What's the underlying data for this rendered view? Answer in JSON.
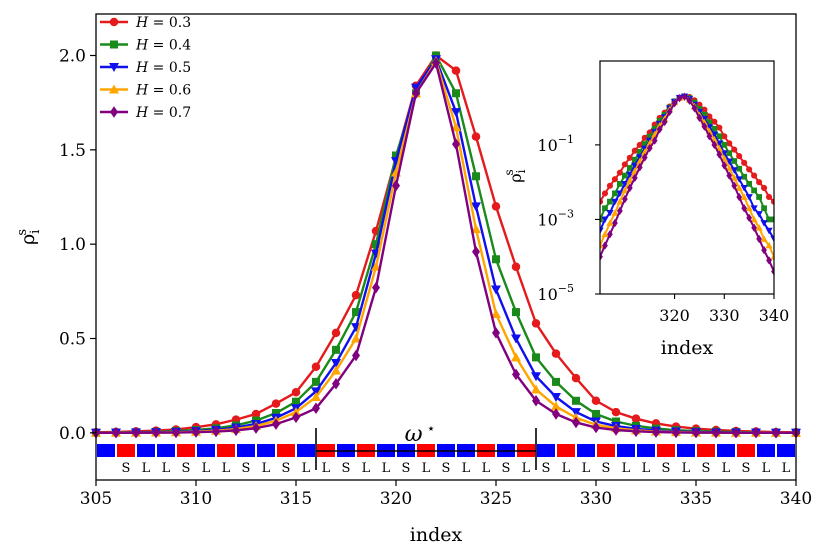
{
  "chart_data": {
    "type": "line",
    "title": "",
    "xlabel": "index",
    "ylabel_main": "ρ",
    "ylabel_sup": "s",
    "ylabel_sub": "i",
    "xlim": [
      305,
      340
    ],
    "ylim": [
      -0.25,
      2.22
    ],
    "xticks": [
      305,
      310,
      315,
      320,
      325,
      330,
      335,
      340
    ],
    "yticks": [
      0.0,
      0.5,
      1.0,
      1.5,
      2.0
    ],
    "x": [
      305,
      306,
      307,
      308,
      309,
      310,
      311,
      312,
      313,
      314,
      315,
      316,
      317,
      318,
      319,
      320,
      321,
      322,
      323,
      324,
      325,
      326,
      327,
      328,
      329,
      330,
      331,
      332,
      333,
      334,
      335,
      336,
      337,
      338,
      339,
      340
    ],
    "series": [
      {
        "name": "H = 0.3",
        "label_var": "H",
        "label_eq": " = 0.3",
        "color": "#e41a1c",
        "marker": "circle",
        "values": [
          0.003,
          0.005,
          0.008,
          0.012,
          0.018,
          0.03,
          0.045,
          0.07,
          0.1,
          0.155,
          0.215,
          0.35,
          0.53,
          0.73,
          1.07,
          1.46,
          1.84,
          2.0,
          1.92,
          1.57,
          1.2,
          0.88,
          0.58,
          0.42,
          0.29,
          0.17,
          0.11,
          0.075,
          0.05,
          0.033,
          0.022,
          0.015,
          0.01,
          0.007,
          0.004,
          0.003
        ]
      },
      {
        "name": "H = 0.4",
        "label_var": "H",
        "label_eq": " = 0.4",
        "color": "#1a8a1a",
        "marker": "square",
        "values": [
          0.001,
          0.002,
          0.003,
          0.005,
          0.009,
          0.015,
          0.024,
          0.04,
          0.065,
          0.105,
          0.165,
          0.27,
          0.44,
          0.64,
          1.0,
          1.47,
          1.8,
          2.0,
          1.8,
          1.36,
          0.92,
          0.64,
          0.4,
          0.27,
          0.17,
          0.1,
          0.06,
          0.037,
          0.023,
          0.014,
          0.009,
          0.006,
          0.004,
          0.002,
          0.001,
          0.001
        ]
      },
      {
        "name": "H = 0.5",
        "label_var": "H",
        "label_eq": " = 0.5",
        "color": "#1010ee",
        "marker": "triangle-down",
        "values": [
          0.0005,
          0.001,
          0.0015,
          0.003,
          0.005,
          0.009,
          0.016,
          0.028,
          0.047,
          0.08,
          0.13,
          0.22,
          0.37,
          0.56,
          0.95,
          1.44,
          1.83,
          1.98,
          1.7,
          1.2,
          0.76,
          0.5,
          0.3,
          0.19,
          0.11,
          0.06,
          0.036,
          0.021,
          0.012,
          0.007,
          0.004,
          0.002,
          0.0014,
          0.0008,
          0.0005,
          0.0003
        ]
      },
      {
        "name": "H = 0.6",
        "label_var": "H",
        "label_eq": " = 0.6",
        "color": "#ffa500",
        "marker": "triangle-up",
        "values": [
          0.0002,
          0.0004,
          0.0008,
          0.0015,
          0.003,
          0.006,
          0.011,
          0.02,
          0.036,
          0.064,
          0.11,
          0.19,
          0.33,
          0.5,
          0.88,
          1.38,
          1.8,
          1.97,
          1.62,
          1.08,
          0.63,
          0.4,
          0.23,
          0.14,
          0.08,
          0.043,
          0.024,
          0.013,
          0.007,
          0.004,
          0.002,
          0.001,
          0.0006,
          0.0003,
          0.0002,
          0.0001
        ]
      },
      {
        "name": "H = 0.7",
        "label_var": "H",
        "label_eq": " = 0.7",
        "color": "#800080",
        "marker": "diamond",
        "values": [
          0.0001,
          0.0002,
          0.0004,
          0.0008,
          0.0017,
          0.0035,
          0.007,
          0.013,
          0.025,
          0.046,
          0.082,
          0.13,
          0.26,
          0.41,
          0.77,
          1.31,
          1.8,
          1.96,
          1.53,
          0.96,
          0.53,
          0.31,
          0.17,
          0.1,
          0.055,
          0.028,
          0.015,
          0.008,
          0.004,
          0.002,
          0.0011,
          0.0006,
          0.0003,
          0.00015,
          8e-05,
          4e-05
        ]
      }
    ],
    "legend_position": "top-left",
    "inset": {
      "xlabel": "index",
      "ylabel_main": "ρ",
      "ylabel_sup": "s",
      "ylabel_sub": "i",
      "xlim": [
        305,
        340
      ],
      "log_ylim": [
        -5,
        1.25
      ],
      "xticks": [
        320,
        330,
        340
      ],
      "yticks_exp": [
        -1,
        -3,
        -5
      ]
    },
    "sequence": {
      "start_x": 305,
      "tile_colors": [
        "blue",
        "red",
        "blue",
        "blue",
        "red",
        "blue",
        "red",
        "blue",
        "blue",
        "red",
        "blue",
        "red",
        "blue",
        "red",
        "blue",
        "blue",
        "red",
        "blue",
        "blue",
        "red",
        "blue",
        "red",
        "blue",
        "red",
        "blue",
        "red",
        "blue",
        "blue",
        "red",
        "blue",
        "red",
        "blue",
        "red",
        "blue",
        "blue",
        "red"
      ],
      "letters": [
        "",
        "S",
        "L",
        "L",
        "S",
        "L",
        "L",
        "S",
        "L",
        "S",
        "L",
        "L",
        "S",
        "L",
        "L",
        "S",
        "L",
        "S",
        "L",
        "L",
        "S",
        "L",
        "S",
        "L",
        "L",
        "S",
        "L",
        "L",
        "S",
        "L",
        "S",
        "L",
        "S",
        "L",
        "L",
        "S"
      ],
      "omega_label": "ω",
      "omega_sup": "⋆",
      "omega_range": [
        316,
        327
      ]
    }
  }
}
